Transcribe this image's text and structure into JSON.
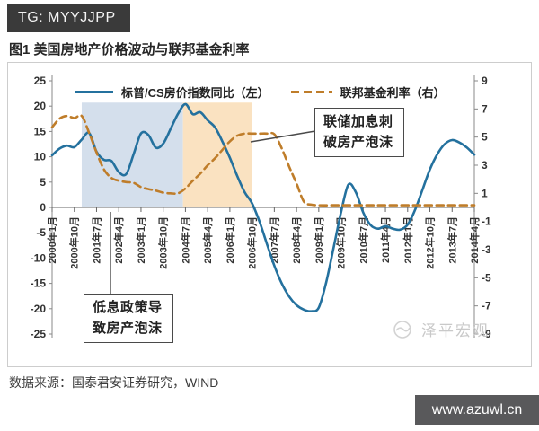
{
  "page": {
    "tg_badge": "TG: MYYJJPP",
    "site_badge": "www.azuwl.cn",
    "title": "图1 美国房地产价格波动与联邦基金利率",
    "source": "数据来源：国泰君安证券研究，WIND",
    "watermark": "泽平宏观"
  },
  "colors": {
    "price_line": "#24719e",
    "rate_line": "#bf7d2a",
    "low_rate_shade": "#d4dfec",
    "hike_shade": "#fae2c1",
    "axis": "#888888",
    "badge_dark": "#3a3a3a",
    "badge_gray": "#59595b"
  },
  "chart_data": {
    "type": "line",
    "title": "图1 美国房地产价格波动与联邦基金利率",
    "legend_position": "top",
    "grid": false,
    "x_axis": {
      "unit": "months since 2000-01",
      "total_months": 171,
      "tick_interval_months": 9,
      "tick_labels": [
        "2000年1月",
        "2000年10月",
        "2001年7月",
        "2002年4月",
        "2003年1月",
        "2003年10月",
        "2004年7月",
        "2005年4月",
        "2006年1月",
        "2006年10月",
        "2007年7月",
        "2008年4月",
        "2009年1月",
        "2009年10月",
        "2010年7月",
        "2011年4月",
        "2012年1月",
        "2012年10月",
        "2013年7月",
        "2014年4月"
      ],
      "label_rotation": -90
    },
    "y_left": {
      "min": -25,
      "max": 25,
      "ticks": [
        25,
        20,
        15,
        10,
        5,
        0,
        -5,
        -10,
        -15,
        -20,
        -25
      ]
    },
    "y_right": {
      "min": -9,
      "max": 9,
      "ticks": [
        9,
        7,
        5,
        3,
        1,
        -1,
        -3,
        -5,
        -7,
        -9
      ]
    },
    "series": [
      {
        "name": "标普/CS房价指数同比（左）",
        "axis": "left",
        "color": "#24719e",
        "line_style": "solid",
        "points": [
          [
            0,
            10.3
          ],
          [
            3,
            11.6
          ],
          [
            6,
            12.2
          ],
          [
            9,
            11.9
          ],
          [
            12,
            13.4
          ],
          [
            15,
            14.7
          ],
          [
            18,
            11.0
          ],
          [
            21,
            9.4
          ],
          [
            24,
            9.2
          ],
          [
            27,
            7.0
          ],
          [
            30,
            6.6
          ],
          [
            33,
            10.5
          ],
          [
            36,
            14.6
          ],
          [
            39,
            14.3
          ],
          [
            42,
            11.8
          ],
          [
            45,
            12.6
          ],
          [
            48,
            15.5
          ],
          [
            51,
            18.5
          ],
          [
            54,
            20.4
          ],
          [
            57,
            18.4
          ],
          [
            60,
            18.8
          ],
          [
            63,
            17.2
          ],
          [
            66,
            15.8
          ],
          [
            69,
            13.0
          ],
          [
            72,
            9.8
          ],
          [
            75,
            6.2
          ],
          [
            78,
            3.0
          ],
          [
            81,
            0.8
          ],
          [
            84,
            -2.8
          ],
          [
            87,
            -7.2
          ],
          [
            90,
            -11.5
          ],
          [
            93,
            -15.0
          ],
          [
            96,
            -17.6
          ],
          [
            99,
            -19.3
          ],
          [
            102,
            -20.2
          ],
          [
            105,
            -20.5
          ],
          [
            108,
            -19.8
          ],
          [
            111,
            -14.8
          ],
          [
            114,
            -8.0
          ],
          [
            117,
            -1.0
          ],
          [
            120,
            4.5
          ],
          [
            123,
            3.0
          ],
          [
            126,
            -1.0
          ],
          [
            129,
            -3.5
          ],
          [
            132,
            -4.2
          ],
          [
            135,
            -3.7
          ],
          [
            138,
            -4.2
          ],
          [
            141,
            -4.4
          ],
          [
            144,
            -3.4
          ],
          [
            147,
            -0.5
          ],
          [
            150,
            3.5
          ],
          [
            153,
            7.5
          ],
          [
            156,
            10.5
          ],
          [
            159,
            12.5
          ],
          [
            162,
            13.3
          ],
          [
            165,
            12.8
          ],
          [
            168,
            11.8
          ],
          [
            171,
            10.4
          ]
        ]
      },
      {
        "name": "联邦基金利率（右）",
        "axis": "right",
        "color": "#bf7d2a",
        "line_style": "dashed",
        "points": [
          [
            0,
            5.7
          ],
          [
            3,
            6.3
          ],
          [
            6,
            6.5
          ],
          [
            9,
            6.35
          ],
          [
            12,
            6.5
          ],
          [
            15,
            5.3
          ],
          [
            18,
            3.9
          ],
          [
            21,
            2.7
          ],
          [
            24,
            2.1
          ],
          [
            27,
            1.9
          ],
          [
            30,
            1.8
          ],
          [
            33,
            1.75
          ],
          [
            36,
            1.45
          ],
          [
            39,
            1.3
          ],
          [
            42,
            1.2
          ],
          [
            45,
            1.05
          ],
          [
            48,
            1.0
          ],
          [
            51,
            1.0
          ],
          [
            54,
            1.35
          ],
          [
            57,
            1.9
          ],
          [
            60,
            2.4
          ],
          [
            63,
            3.0
          ],
          [
            66,
            3.5
          ],
          [
            69,
            4.1
          ],
          [
            72,
            4.7
          ],
          [
            75,
            5.1
          ],
          [
            78,
            5.25
          ],
          [
            81,
            5.25
          ],
          [
            84,
            5.25
          ],
          [
            87,
            5.25
          ],
          [
            90,
            5.2
          ],
          [
            93,
            4.2
          ],
          [
            96,
            2.9
          ],
          [
            99,
            1.7
          ],
          [
            102,
            0.4
          ],
          [
            105,
            0.2
          ],
          [
            108,
            0.15
          ],
          [
            114,
            0.15
          ],
          [
            120,
            0.15
          ],
          [
            126,
            0.15
          ],
          [
            132,
            0.15
          ],
          [
            138,
            0.15
          ],
          [
            144,
            0.15
          ],
          [
            150,
            0.15
          ],
          [
            156,
            0.15
          ],
          [
            162,
            0.15
          ],
          [
            168,
            0.15
          ],
          [
            171,
            0.15
          ]
        ]
      }
    ],
    "shaded_regions": [
      {
        "label": "低息政策导致房产泡沫",
        "from_month": 12,
        "to_month": 53,
        "top_left_value": 20.7,
        "bottom_left_value": 0,
        "color": "#d4dfec"
      },
      {
        "label": "联储加息刺破房产泡沫",
        "from_month": 53,
        "to_month": 81,
        "top_left_value": 20.7,
        "bottom_left_value": 0,
        "color": "#fae2c1"
      }
    ],
    "annotations": [
      {
        "text": "联储加息刺破房产泡沫"
      },
      {
        "text": "低息政策导致房产泡沫"
      }
    ]
  }
}
